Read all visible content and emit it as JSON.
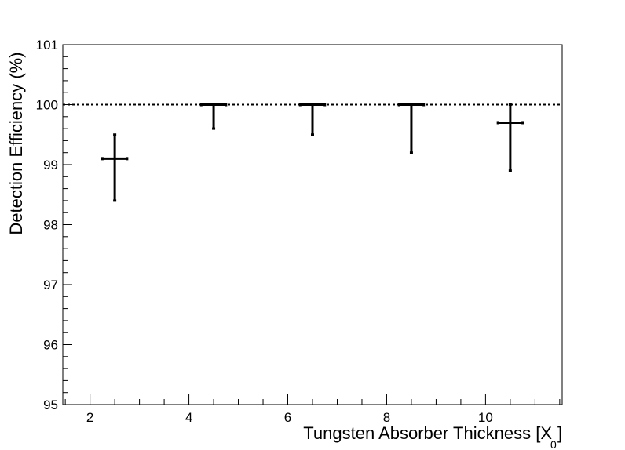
{
  "chart_data": {
    "type": "scatter",
    "title": "",
    "xlabel": "Tungsten Absorber Thickness [X",
    "xlabel_subscript": "0",
    "xlabel_close": "]",
    "ylabel": "Detection Efficiency (%)",
    "xlim": [
      1.45,
      11.55
    ],
    "ylim": [
      95,
      101
    ],
    "xticks": [
      2,
      4,
      6,
      8,
      10
    ],
    "xtick_labels": [
      "2",
      "4",
      "6",
      "8",
      "10"
    ],
    "yticks": [
      95,
      96,
      97,
      98,
      99,
      100,
      101
    ],
    "ytick_labels": [
      "95",
      "96",
      "97",
      "98",
      "99",
      "100",
      "101"
    ],
    "grid": false,
    "reference_line": {
      "y": 100,
      "style": "dotted"
    },
    "points": [
      {
        "x": 2.5,
        "y": 99.1,
        "x_err": 0.25,
        "y_low": 98.4,
        "y_high": 99.5
      },
      {
        "x": 4.5,
        "y": 100.0,
        "x_err": 0.25,
        "y_low": 99.6,
        "y_high": 100.0
      },
      {
        "x": 6.5,
        "y": 100.0,
        "x_err": 0.25,
        "y_low": 99.5,
        "y_high": 100.0
      },
      {
        "x": 8.5,
        "y": 100.0,
        "x_err": 0.25,
        "y_low": 99.2,
        "y_high": 100.0
      },
      {
        "x": 10.5,
        "y": 99.7,
        "x_err": 0.25,
        "y_low": 98.9,
        "y_high": 100.0
      }
    ]
  }
}
